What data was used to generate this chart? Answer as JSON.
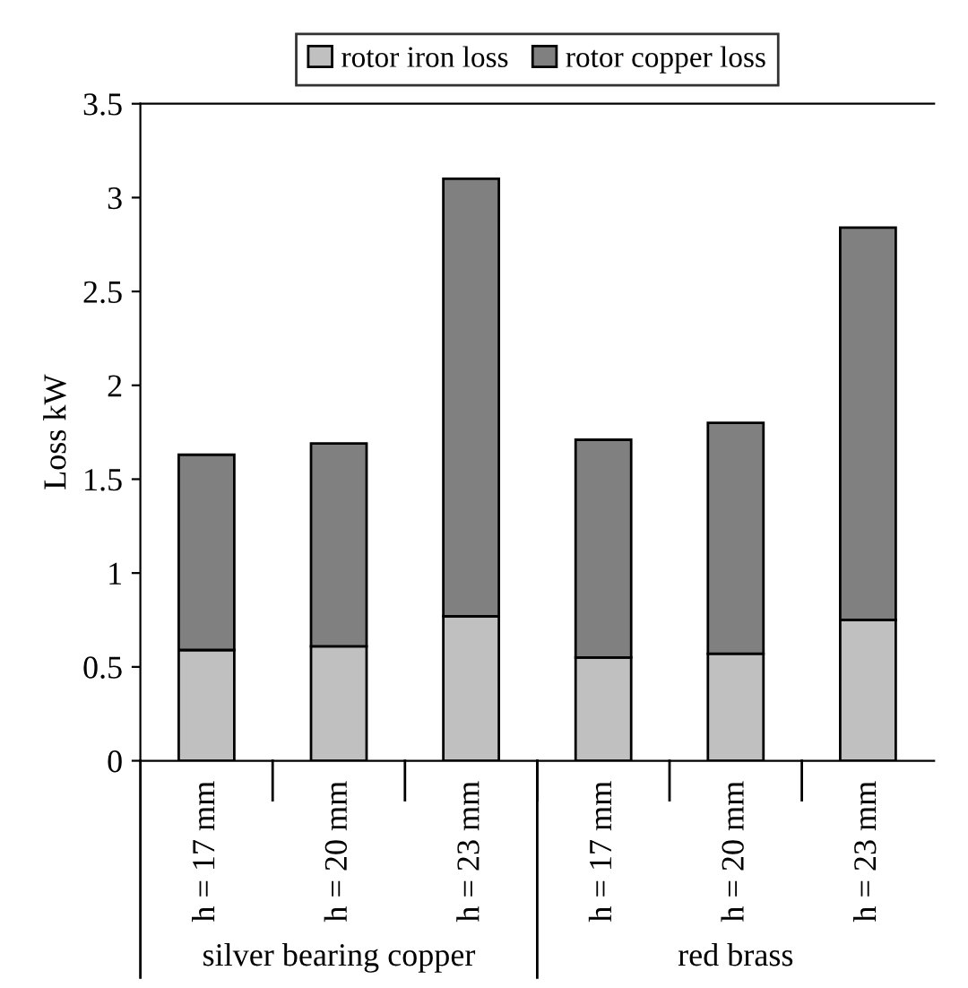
{
  "chart_data": {
    "type": "bar",
    "stacked": true,
    "ylabel": "Loss kW",
    "categories": [
      "h = 17 mm",
      "h = 20 mm",
      "h = 23 mm",
      "h = 17 mm",
      "h = 20 mm",
      "h = 23 mm"
    ],
    "series": [
      {
        "name": "rotor iron loss",
        "color": "#c0c0c0",
        "values": [
          0.59,
          0.61,
          0.77,
          0.55,
          0.57,
          0.75
        ]
      },
      {
        "name": "rotor copper loss",
        "color": "#808080",
        "values": [
          1.04,
          1.08,
          2.33,
          1.16,
          1.23,
          2.09
        ]
      }
    ],
    "annotations": [
      "silver bearing copper",
      "red brass"
    ],
    "ylim": [
      0,
      3.5
    ],
    "yticks": [
      0,
      0.5,
      1,
      1.5,
      2,
      2.5,
      3,
      3.5
    ],
    "grid": false,
    "legend": "top"
  }
}
